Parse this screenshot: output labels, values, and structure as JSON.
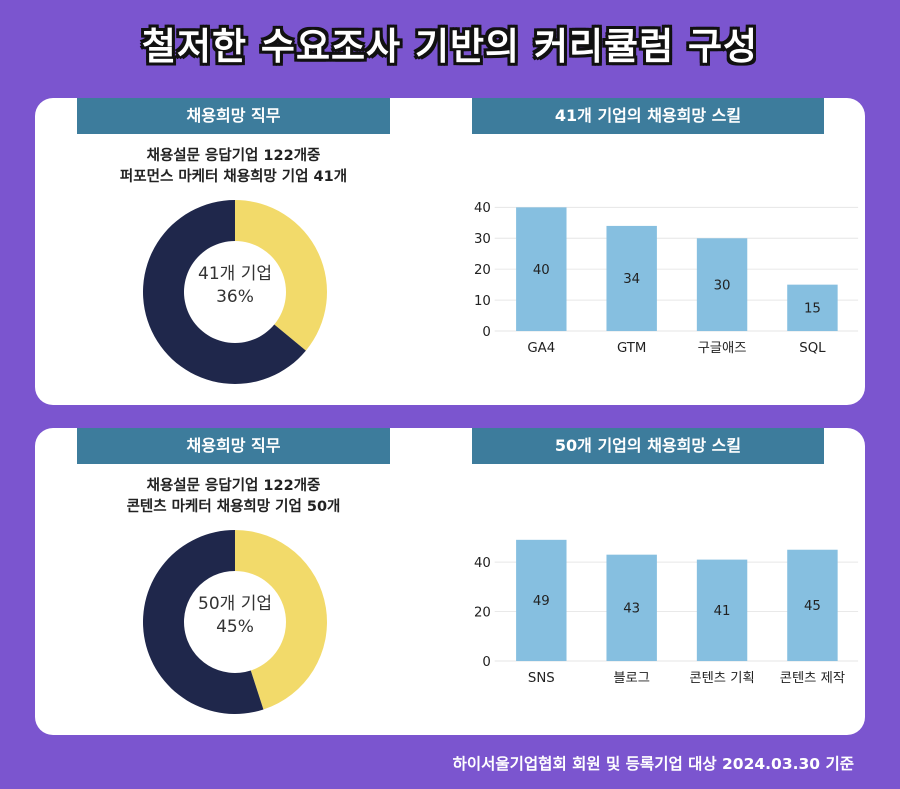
{
  "title": "철저한 수요조사 기반의 커리큘럼 구성",
  "footer": "하이서울기업협회 회원 및 등록기업 대상 2024.03.30 기준",
  "colors": {
    "background": "#7b55cf",
    "header": "#3d7c9c",
    "donut_dark": "#1f274b",
    "donut_yellow": "#f2da6a",
    "bar": "#86bfe0"
  },
  "panels": [
    {
      "left_header": "채용희망 직무",
      "right_header": "41개 기업의 채용희망 스킬",
      "subtitle_line1": "채용설문 응답기업 122개중",
      "subtitle_line2": "퍼포먼스 마케터 채용희망 기업 41개",
      "center_line1": "41개 기업",
      "center_line2": "36%"
    },
    {
      "left_header": "채용희망 직무",
      "right_header": "50개 기업의 채용희망 스킬",
      "subtitle_line1": "채용설문 응답기업 122개중",
      "subtitle_line2": "콘텐츠 마케터 채용희망 기업 50개",
      "center_line1": "50개 기업",
      "center_line2": "45%"
    }
  ],
  "chart_data": [
    {
      "type": "pie",
      "donut": true,
      "values": [
        36,
        64
      ],
      "colors": [
        "#f2da6a",
        "#1f274b"
      ]
    },
    {
      "type": "bar",
      "categories": [
        "GA4",
        "GTM",
        "구글애즈",
        "SQL"
      ],
      "values": [
        40,
        34,
        30,
        15
      ],
      "ylim": [
        0,
        40
      ],
      "yticks": [
        0,
        10,
        20,
        30,
        40
      ],
      "grid": true
    },
    {
      "type": "pie",
      "donut": true,
      "values": [
        45,
        55
      ],
      "colors": [
        "#f2da6a",
        "#1f274b"
      ]
    },
    {
      "type": "bar",
      "categories": [
        "SNS",
        "블로그",
        "콘텐츠 기획",
        "콘텐츠 제작"
      ],
      "values": [
        49,
        43,
        41,
        45
      ],
      "ylim": [
        0,
        50
      ],
      "yticks": [
        0,
        20,
        40
      ],
      "grid": true
    }
  ]
}
